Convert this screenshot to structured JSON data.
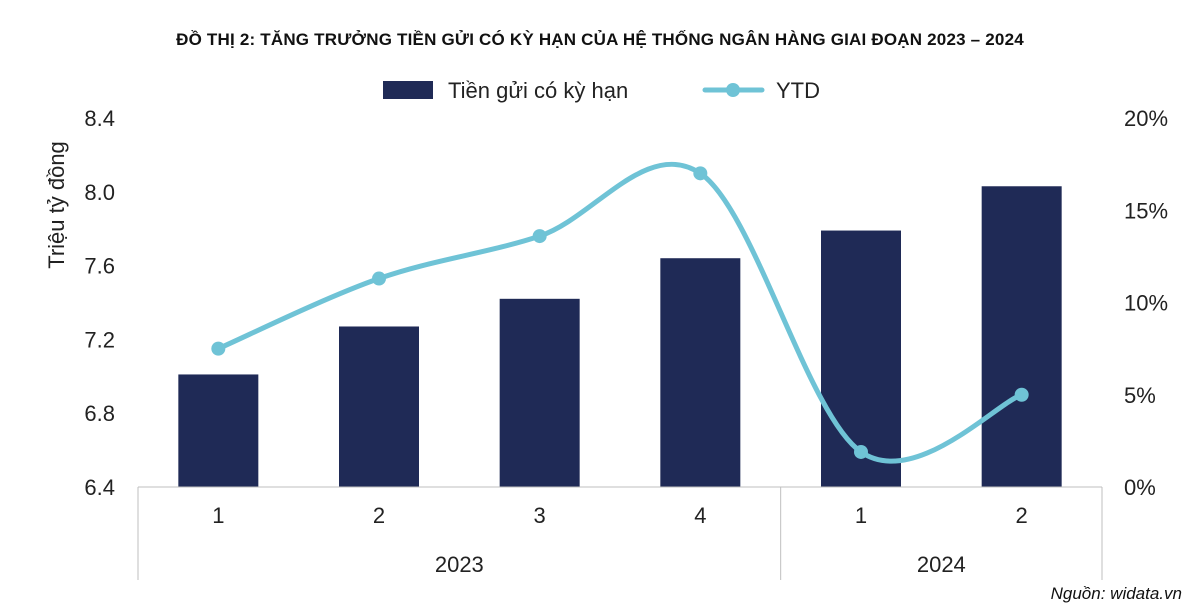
{
  "title": "ĐỒ THỊ 2: TĂNG TRƯỞNG TIỀN GỬI CÓ KỲ HẠN CỦA HỆ THỐNG NGÂN HÀNG GIAI ĐOẠN 2023 – 2024",
  "source": "Nguồn: widata.vn",
  "colors": {
    "bar": "#1f2a56",
    "line": "#6fc3d6"
  },
  "chart_data": {
    "type": "bar",
    "categories": [
      "1",
      "2",
      "3",
      "4",
      "1",
      "2"
    ],
    "groups": [
      {
        "label": "2023",
        "count": 4
      },
      {
        "label": "2024",
        "count": 2
      }
    ],
    "series": [
      {
        "name": "Tiền gửi có kỳ hạn",
        "type": "bar",
        "axis": "left",
        "values": [
          7.01,
          7.27,
          7.42,
          7.64,
          7.79,
          8.03
        ]
      },
      {
        "name": "YTD",
        "type": "line",
        "axis": "right",
        "values": [
          7.5,
          11.3,
          13.6,
          17.0,
          1.9,
          5.0
        ]
      }
    ],
    "ylabel": "Triệu tỷ đồng",
    "ylim": [
      6.4,
      8.4
    ],
    "yticks": [
      "8.4",
      "8.0",
      "7.6",
      "7.2",
      "6.8",
      "6.4"
    ],
    "y2lim": [
      0,
      20
    ],
    "y2ticks": [
      "20%",
      "15%",
      "10%",
      "5%",
      "0%"
    ],
    "legend": "top"
  }
}
